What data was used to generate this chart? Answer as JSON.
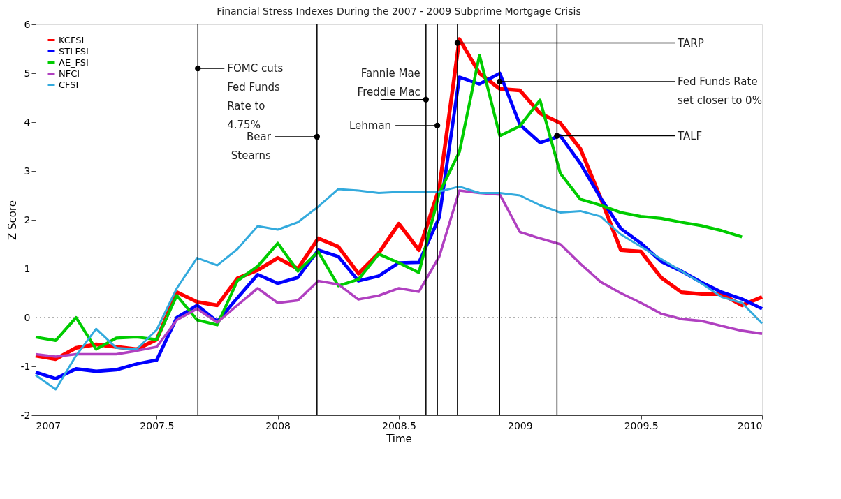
{
  "chart_data": {
    "type": "line",
    "title": "Financial Stress Indexes During the 2007 - 2009 Subprime Mortgage Crisis",
    "xlabel": "Time",
    "ylabel": "Z Score",
    "x": [
      2007,
      2007.083,
      2007.167,
      2007.25,
      2007.333,
      2007.417,
      2007.5,
      2007.583,
      2007.667,
      2007.75,
      2007.833,
      2007.917,
      2008,
      2008.083,
      2008.167,
      2008.25,
      2008.333,
      2008.417,
      2008.5,
      2008.583,
      2008.667,
      2008.75,
      2008.833,
      2008.917,
      2009,
      2009.083,
      2009.167,
      2009.25,
      2009.333,
      2009.417,
      2009.5,
      2009.583,
      2009.667,
      2009.75,
      2009.833,
      2009.917,
      2010
    ],
    "series": [
      {
        "name": "KCFSI",
        "color": "#ff0000",
        "values": [
          -0.78,
          -0.85,
          -0.62,
          -0.55,
          -0.6,
          -0.65,
          -0.45,
          0.52,
          0.32,
          0.25,
          0.8,
          0.97,
          1.22,
          1.0,
          1.62,
          1.45,
          0.9,
          1.32,
          1.92,
          1.38,
          2.65,
          5.7,
          5.0,
          4.68,
          4.65,
          4.18,
          3.98,
          3.45,
          2.45,
          1.38,
          1.35,
          0.82,
          0.52,
          0.48,
          0.48,
          0.25,
          0.42
        ]
      },
      {
        "name": "STLFSI",
        "color": "#0000ff",
        "values": [
          -1.12,
          -1.25,
          -1.05,
          -1.1,
          -1.07,
          -0.95,
          -0.87,
          0.0,
          0.25,
          -0.08,
          0.4,
          0.88,
          0.7,
          0.82,
          1.38,
          1.25,
          0.75,
          0.85,
          1.12,
          1.13,
          2.05,
          4.92,
          4.78,
          5.0,
          3.95,
          3.58,
          3.72,
          3.15,
          2.45,
          1.82,
          1.52,
          1.15,
          0.95,
          0.72,
          0.52,
          0.38,
          0.18
        ]
      },
      {
        "name": "AE_FSI",
        "color": "#00cc00",
        "values": [
          -0.4,
          -0.47,
          0.0,
          -0.65,
          -0.42,
          -0.4,
          -0.45,
          0.45,
          -0.05,
          -0.15,
          0.75,
          1.05,
          1.52,
          0.95,
          1.35,
          0.65,
          0.78,
          1.3,
          1.12,
          0.92,
          2.55,
          3.39,
          5.37,
          3.72,
          3.92,
          4.45,
          2.95,
          2.42,
          2.3,
          2.15,
          2.07,
          2.03,
          1.95,
          1.88,
          1.78,
          1.65,
          null
        ]
      },
      {
        "name": "NFCI",
        "color": "#b040c0",
        "values": [
          -0.75,
          -0.8,
          -0.75,
          -0.75,
          -0.75,
          -0.68,
          -0.6,
          -0.05,
          0.18,
          -0.1,
          0.25,
          0.6,
          0.3,
          0.35,
          0.75,
          0.68,
          0.37,
          0.45,
          0.6,
          0.53,
          1.25,
          2.6,
          2.55,
          2.52,
          1.75,
          1.62,
          1.5,
          1.1,
          0.73,
          0.5,
          0.3,
          0.08,
          -0.03,
          -0.07,
          -0.17,
          -0.27,
          -0.33
        ]
      },
      {
        "name": "CFSI",
        "color": "#33aadd",
        "values": [
          -1.18,
          -1.47,
          -0.78,
          -0.23,
          -0.62,
          -0.65,
          -0.25,
          0.6,
          1.22,
          1.07,
          1.4,
          1.87,
          1.8,
          1.95,
          2.27,
          2.63,
          2.6,
          2.55,
          2.57,
          2.58,
          2.58,
          2.68,
          2.55,
          2.55,
          2.5,
          2.3,
          2.15,
          2.18,
          2.07,
          1.7,
          1.45,
          1.2,
          0.95,
          0.7,
          0.42,
          0.3,
          -0.12
        ]
      }
    ],
    "xlim": [
      2007,
      2010
    ],
    "ylim": [
      -2,
      6
    ],
    "xticks": [
      2007,
      2007.5,
      2008,
      2008.5,
      2009,
      2009.5,
      2010
    ],
    "yticks": [
      -2,
      -1,
      0,
      1,
      2,
      3,
      4,
      5,
      6
    ],
    "grid": false,
    "legend": "top left",
    "ref_lines": [
      {
        "axis": "y",
        "value": 0,
        "color": "#999999",
        "line_style": "dotted"
      },
      {
        "axis": "x",
        "value": 2007.67,
        "color": "#000000"
      },
      {
        "axis": "x",
        "value": 2008.162,
        "color": "#000000"
      },
      {
        "axis": "x",
        "value": 2008.612,
        "color": "#000000"
      },
      {
        "axis": "x",
        "value": 2008.659,
        "color": "#000000"
      },
      {
        "axis": "x",
        "value": 2008.742,
        "color": "#000000"
      },
      {
        "axis": "x",
        "value": 2008.916,
        "color": "#000000"
      },
      {
        "axis": "x",
        "value": 2009.153,
        "color": "#000000"
      }
    ],
    "annotations": [
      {
        "text": "FOMC cuts\nFed Funds\nRate to\n4.75%",
        "x": 2007.67,
        "y": 5.1
      },
      {
        "text": "Bear\nStearns",
        "x": 2008.162,
        "y": 3.7
      },
      {
        "text": "Fannie Mae\nFreddie Mac",
        "x": 2008.612,
        "y": 4.46
      },
      {
        "text": "Lehman",
        "x": 2008.659,
        "y": 3.93
      },
      {
        "text": "TARP",
        "x": 2008.742,
        "y": 5.62
      },
      {
        "text": "Fed Funds Rate\nset closer to 0%",
        "x": 2008.916,
        "y": 4.83
      },
      {
        "text": "TALF",
        "x": 2009.153,
        "y": 3.72
      }
    ]
  }
}
